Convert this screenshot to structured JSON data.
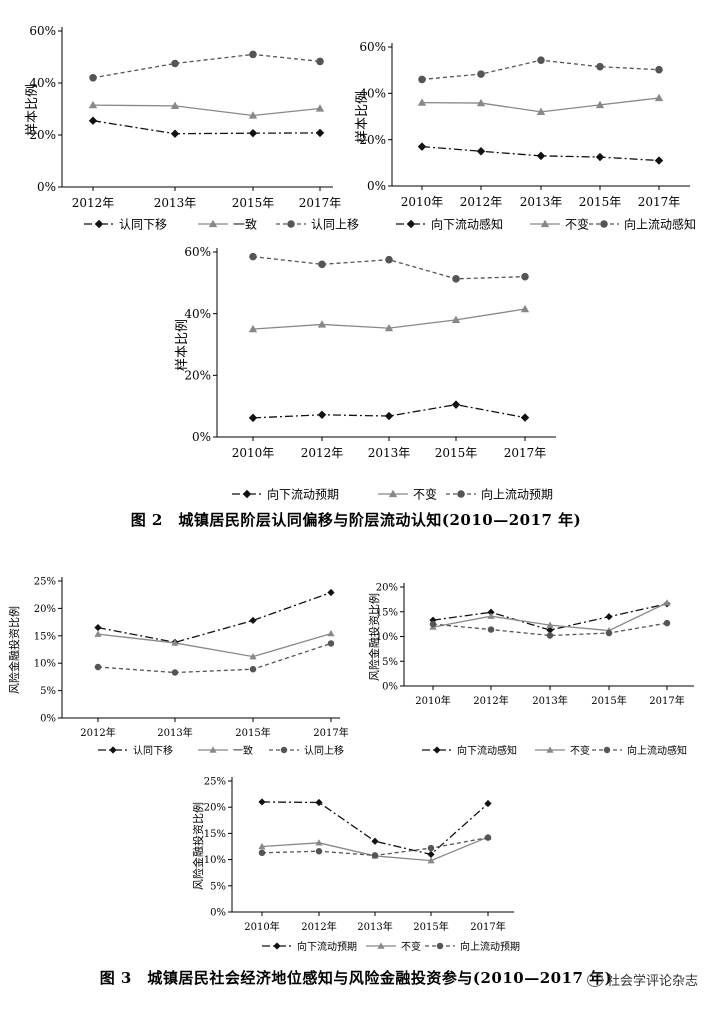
{
  "figure2": {
    "caption": "图 2　城镇居民阶层认同偏移与阶层流动认知(2010—2017 年)"
  },
  "figure3": {
    "caption": "图 3　城镇居民社会经济地位感知与风险金融投资参与(2010—2017 年)"
  },
  "watermark": "社会学评论杂志",
  "styles": {
    "down": {
      "color": "#111111",
      "marker": "diamond",
      "dash": "8,3,2,3"
    },
    "same": {
      "color": "#888888",
      "marker": "triangle",
      "dash": "none"
    },
    "up": {
      "color": "#555555",
      "marker": "circle",
      "dash": "4,3"
    }
  },
  "chart_data": [
    {
      "id": "c1",
      "type": "line",
      "categories": [
        "2012年",
        "2013年",
        "2015年",
        "2017年"
      ],
      "ylabel": "样本比例",
      "ylim": [
        0,
        60
      ],
      "yticks": [
        0,
        20,
        40,
        60
      ],
      "ysuffix": "%",
      "series": [
        {
          "name": "认同下移",
          "style": "down",
          "values": [
            25.5,
            20.5,
            20.7,
            20.8
          ]
        },
        {
          "name": "一致",
          "style": "same",
          "values": [
            31.5,
            31.2,
            27.5,
            30.2
          ]
        },
        {
          "name": "认同上移",
          "style": "up",
          "values": [
            42.0,
            47.5,
            51.0,
            48.3
          ]
        }
      ]
    },
    {
      "id": "c2",
      "type": "line",
      "categories": [
        "2010年",
        "2012年",
        "2013年",
        "2015年",
        "2017年"
      ],
      "ylabel": "样本比例",
      "ylim": [
        0,
        60
      ],
      "yticks": [
        0,
        20,
        40,
        60
      ],
      "ysuffix": "%",
      "series": [
        {
          "name": "向下流动感知",
          "style": "down",
          "values": [
            17.0,
            15.0,
            13.0,
            12.5,
            11.0
          ]
        },
        {
          "name": "不变",
          "style": "same",
          "values": [
            36.0,
            35.8,
            32.0,
            35.0,
            38.0
          ]
        },
        {
          "name": "向上流动感知",
          "style": "up",
          "values": [
            46.0,
            48.3,
            54.3,
            51.5,
            50.2
          ]
        }
      ]
    },
    {
      "id": "c3",
      "type": "line",
      "categories": [
        "2010年",
        "2012年",
        "2013年",
        "2015年",
        "2017年"
      ],
      "ylabel": "样本比例",
      "ylim": [
        0,
        60
      ],
      "yticks": [
        0,
        20,
        40,
        60
      ],
      "ysuffix": "%",
      "series": [
        {
          "name": "向下流动预期",
          "style": "down",
          "values": [
            6.2,
            7.2,
            6.8,
            10.5,
            6.3
          ]
        },
        {
          "name": "不变",
          "style": "same",
          "values": [
            35.0,
            36.5,
            35.3,
            38.0,
            41.5
          ]
        },
        {
          "name": "向上流动预期",
          "style": "up",
          "values": [
            58.5,
            56.0,
            57.5,
            51.3,
            52.0
          ]
        }
      ]
    },
    {
      "id": "c4",
      "type": "line",
      "categories": [
        "2012年",
        "2013年",
        "2015年",
        "2017年"
      ],
      "ylabel": "风险金融投资比例",
      "ylim": [
        0,
        25
      ],
      "yticks": [
        0,
        5,
        10,
        15,
        20,
        25
      ],
      "ysuffix": "%",
      "series": [
        {
          "name": "认同下移",
          "style": "down",
          "values": [
            16.5,
            13.8,
            17.8,
            22.9
          ]
        },
        {
          "name": "一致",
          "style": "same",
          "values": [
            15.3,
            13.7,
            11.2,
            15.4
          ]
        },
        {
          "name": "认同上移",
          "style": "up",
          "values": [
            9.3,
            8.3,
            8.9,
            13.6
          ]
        }
      ]
    },
    {
      "id": "c5",
      "type": "line",
      "categories": [
        "2010年",
        "2012年",
        "2013年",
        "2015年",
        "2017年"
      ],
      "ylabel": "风险金融投资比例",
      "ylim": [
        0,
        20
      ],
      "yticks": [
        0,
        5,
        10,
        15,
        20
      ],
      "ysuffix": "%",
      "series": [
        {
          "name": "向下流动感知",
          "style": "down",
          "values": [
            13.3,
            14.9,
            11.3,
            14.0,
            16.6
          ]
        },
        {
          "name": "不变",
          "style": "same",
          "values": [
            11.9,
            14.1,
            12.3,
            11.2,
            16.8
          ]
        },
        {
          "name": "向上流动感知",
          "style": "up",
          "values": [
            12.5,
            11.4,
            10.2,
            10.7,
            12.7
          ]
        }
      ]
    },
    {
      "id": "c6",
      "type": "line",
      "categories": [
        "2010年",
        "2012年",
        "2013年",
        "2015年",
        "2017年"
      ],
      "ylabel": "风险金融投资比例",
      "ylim": [
        0,
        25
      ],
      "yticks": [
        0,
        5,
        10,
        15,
        20,
        25
      ],
      "ysuffix": "%",
      "series": [
        {
          "name": "向下流动预期",
          "style": "down",
          "values": [
            21.0,
            20.9,
            13.5,
            11.0,
            20.7
          ]
        },
        {
          "name": "不变",
          "style": "same",
          "values": [
            12.5,
            13.2,
            10.7,
            9.8,
            14.3
          ]
        },
        {
          "name": "向上流动预期",
          "style": "up",
          "values": [
            11.3,
            11.6,
            10.8,
            12.2,
            14.2
          ]
        }
      ]
    }
  ]
}
